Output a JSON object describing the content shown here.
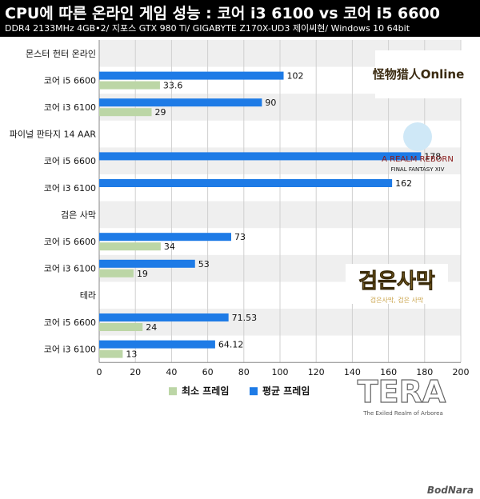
{
  "header": {
    "title": "CPU에 따른 온라인 게임 성능 : 코어 i3 6100 vs 코어 i5 6600",
    "subtitle": "DDR4 2133MHz 4GB•2/ 지포스 GTX 980 Ti/ GIGABYTE Z170X-UD3 제이씨현/ Windows 10 64bit"
  },
  "colors": {
    "avg": "#1e7be6",
    "min": "#bcd6a6",
    "band": "#efefef"
  },
  "chart_data": {
    "type": "bar",
    "orientation": "horizontal",
    "xlim": [
      0,
      200
    ],
    "xticks": [
      "0",
      "20",
      "40",
      "60",
      "80",
      "100",
      "120",
      "140",
      "160",
      "180",
      "200"
    ],
    "legend": {
      "placement": "bottom",
      "entries": [
        "최소 프레임",
        "평균 프레임"
      ]
    },
    "groups": [
      {
        "name": "몬스터 헌터 온라인",
        "rows": [
          {
            "label": "코어 i5 6600",
            "avg": 102,
            "avg_label": "102",
            "min": 33.6,
            "min_label": "33.6"
          },
          {
            "label": "코어 i3 6100",
            "avg": 90,
            "avg_label": "90",
            "min": 29,
            "min_label": "29"
          }
        ]
      },
      {
        "name": "파이널 판타지 14 AAR",
        "rows": [
          {
            "label": "코어 i5 6600",
            "avg": 178,
            "avg_label": "178",
            "min": null,
            "min_label": ""
          },
          {
            "label": "코어 i3 6100",
            "avg": 162,
            "avg_label": "162",
            "min": null,
            "min_label": ""
          }
        ]
      },
      {
        "name": "검은 사막",
        "rows": [
          {
            "label": "코어 i5 6600",
            "avg": 73,
            "avg_label": "73",
            "min": 34,
            "min_label": "34"
          },
          {
            "label": "코어 i3 6100",
            "avg": 53,
            "avg_label": "53",
            "min": 19,
            "min_label": "19"
          }
        ]
      },
      {
        "name": "테라",
        "rows": [
          {
            "label": "코어 i5 6600",
            "avg": 71.53,
            "avg_label": "71.53",
            "min": 24,
            "min_label": "24"
          },
          {
            "label": "코어 i3 6100",
            "avg": 64.12,
            "avg_label": "64.12",
            "min": 13,
            "min_label": "13"
          }
        ]
      }
    ]
  },
  "logos": {
    "mho": {
      "text": "怪物猎人Online",
      "icon": "monster-hunter-logo"
    },
    "ff14": {
      "line1": "A REALM REBORN",
      "line2": "FINAL FANTASY XIV",
      "icon": "final-fantasy-logo"
    },
    "bdo": {
      "line1": "검은사막",
      "line2": "검은사막, 검은 사막",
      "icon": "black-desert-logo"
    },
    "tera": {
      "line1": "TERA",
      "line2": "The Exiled Realm of Arborea",
      "icon": "tera-logo"
    }
  },
  "watermark": "BodNara"
}
